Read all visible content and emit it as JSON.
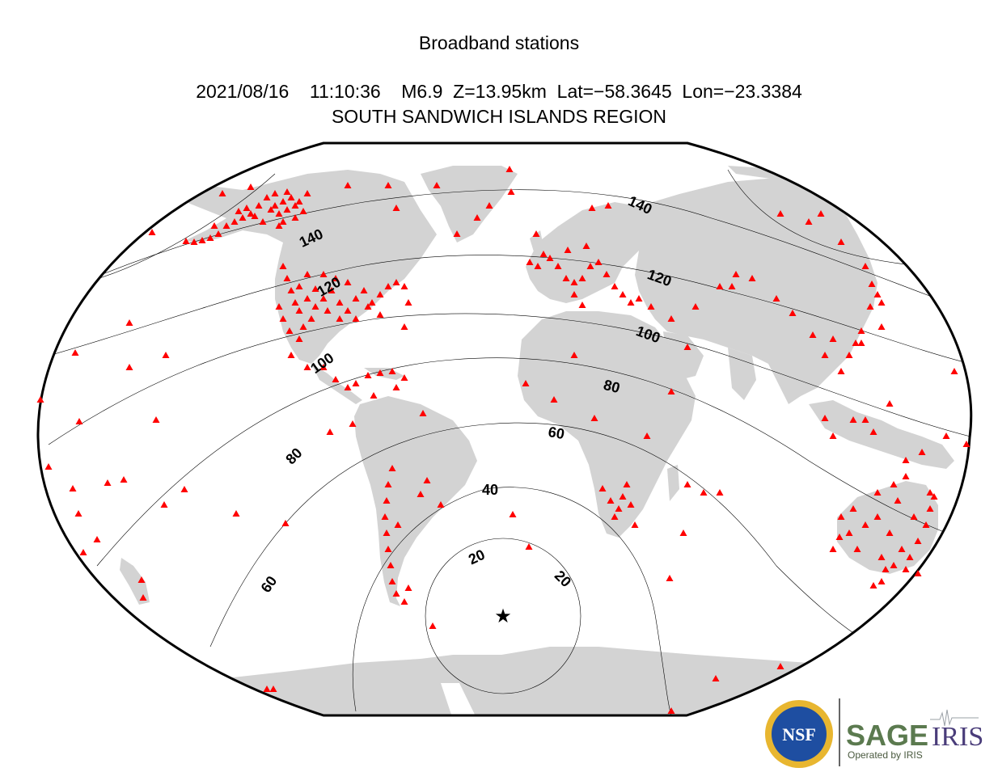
{
  "header": {
    "title": "Broadband stations",
    "event_line": "2021/08/16    11:10:36    M6.9  Z=13.95km  Lat=−58.3645  Lon=−23.3384",
    "region": "SOUTH SANDWICH ISLANDS REGION"
  },
  "epicenter": {
    "lat": -58.3645,
    "lon": -23.3384,
    "symbol": "★"
  },
  "distance_contours": {
    "unit": "degrees",
    "levels": [
      20,
      40,
      60,
      80,
      100,
      120,
      140
    ],
    "labels": [
      "20",
      "20",
      "40",
      "60",
      "60",
      "80",
      "80",
      "100",
      "100",
      "120",
      "120",
      "140",
      "140"
    ]
  },
  "colors": {
    "land": "#d3d3d3",
    "ocean": "#ffffff",
    "station": "#ff0000",
    "contour": "#000000",
    "sage_green": "#5b7a4f",
    "iris_purple": "#4a3d7a",
    "nsf_blue": "#1e4ea1",
    "nsf_gold": "#e8b630"
  },
  "logos": {
    "nsf": "NSF",
    "sage": "SAGE",
    "iris": "IRIS",
    "operated_by": "Operated by IRIS"
  }
}
